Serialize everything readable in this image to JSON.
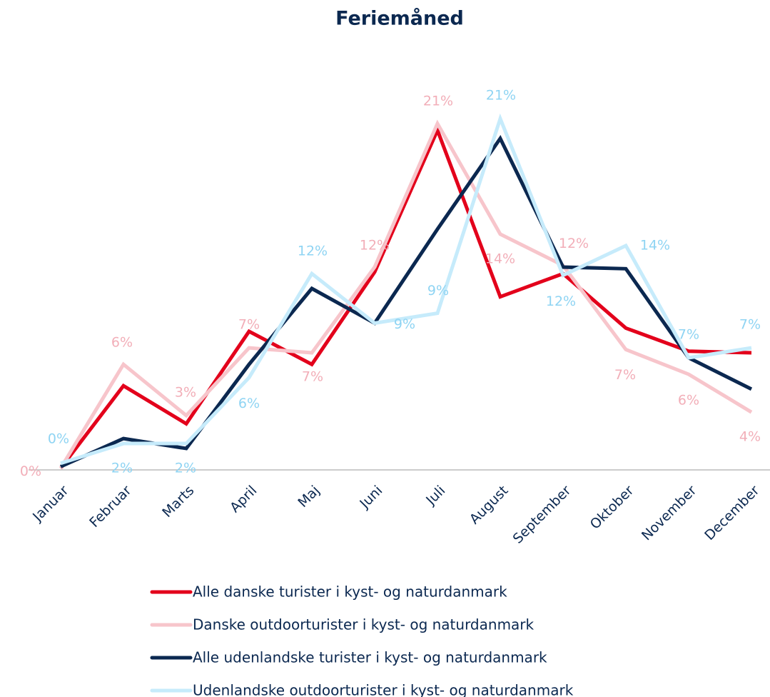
{
  "chart_data": {
    "type": "line",
    "title": "Feriemåned",
    "categories": [
      "Januar",
      "Februar",
      "Marts",
      "April",
      "Maj",
      "Juni",
      "Juli",
      "August",
      "September",
      "Oktober",
      "November",
      "December"
    ],
    "ylim": [
      0,
      22
    ],
    "series": [
      {
        "name": "Alle danske turister i kyst- og naturdanmark",
        "color": "#e3001b",
        "values": [
          0.1,
          5.1,
          2.8,
          8.4,
          6.4,
          12.0,
          20.6,
          10.5,
          11.9,
          8.6,
          7.2,
          7.1
        ]
      },
      {
        "name": "Danske outdoorturister i kyst- og naturdanmark",
        "color": "#f7c5cb",
        "label_color": "#f2aeb8",
        "values": [
          0.1,
          6.4,
          3.3,
          7.4,
          7.1,
          12.3,
          21.0,
          14.3,
          12.4,
          7.3,
          5.8,
          3.5
        ],
        "value_labels": [
          "0%",
          "6%",
          "3%",
          "7%",
          "7%",
          "12%",
          "21%",
          "14%",
          "12%",
          "7%",
          "6%",
          "4%"
        ]
      },
      {
        "name": "Alle udenlandske turister i kyst- og naturdanmark",
        "color": "#0b2850",
        "values": [
          0.2,
          1.9,
          1.3,
          6.4,
          11.0,
          8.9,
          14.6,
          20.1,
          12.3,
          12.2,
          6.8,
          4.9
        ]
      },
      {
        "name": "Udenlandske outdoorturister i kyst- og naturdanmark",
        "color": "#c6ebfb",
        "label_color": "#8fd4f3",
        "values": [
          0.4,
          1.6,
          1.6,
          5.6,
          11.9,
          8.9,
          9.5,
          21.3,
          11.8,
          13.6,
          6.8,
          7.4
        ],
        "value_labels": [
          "0%",
          "2%",
          "2%",
          "6%",
          "12%",
          "9%",
          "9%",
          "21%",
          "12%",
          "14%",
          "7%",
          "7%"
        ]
      }
    ]
  }
}
